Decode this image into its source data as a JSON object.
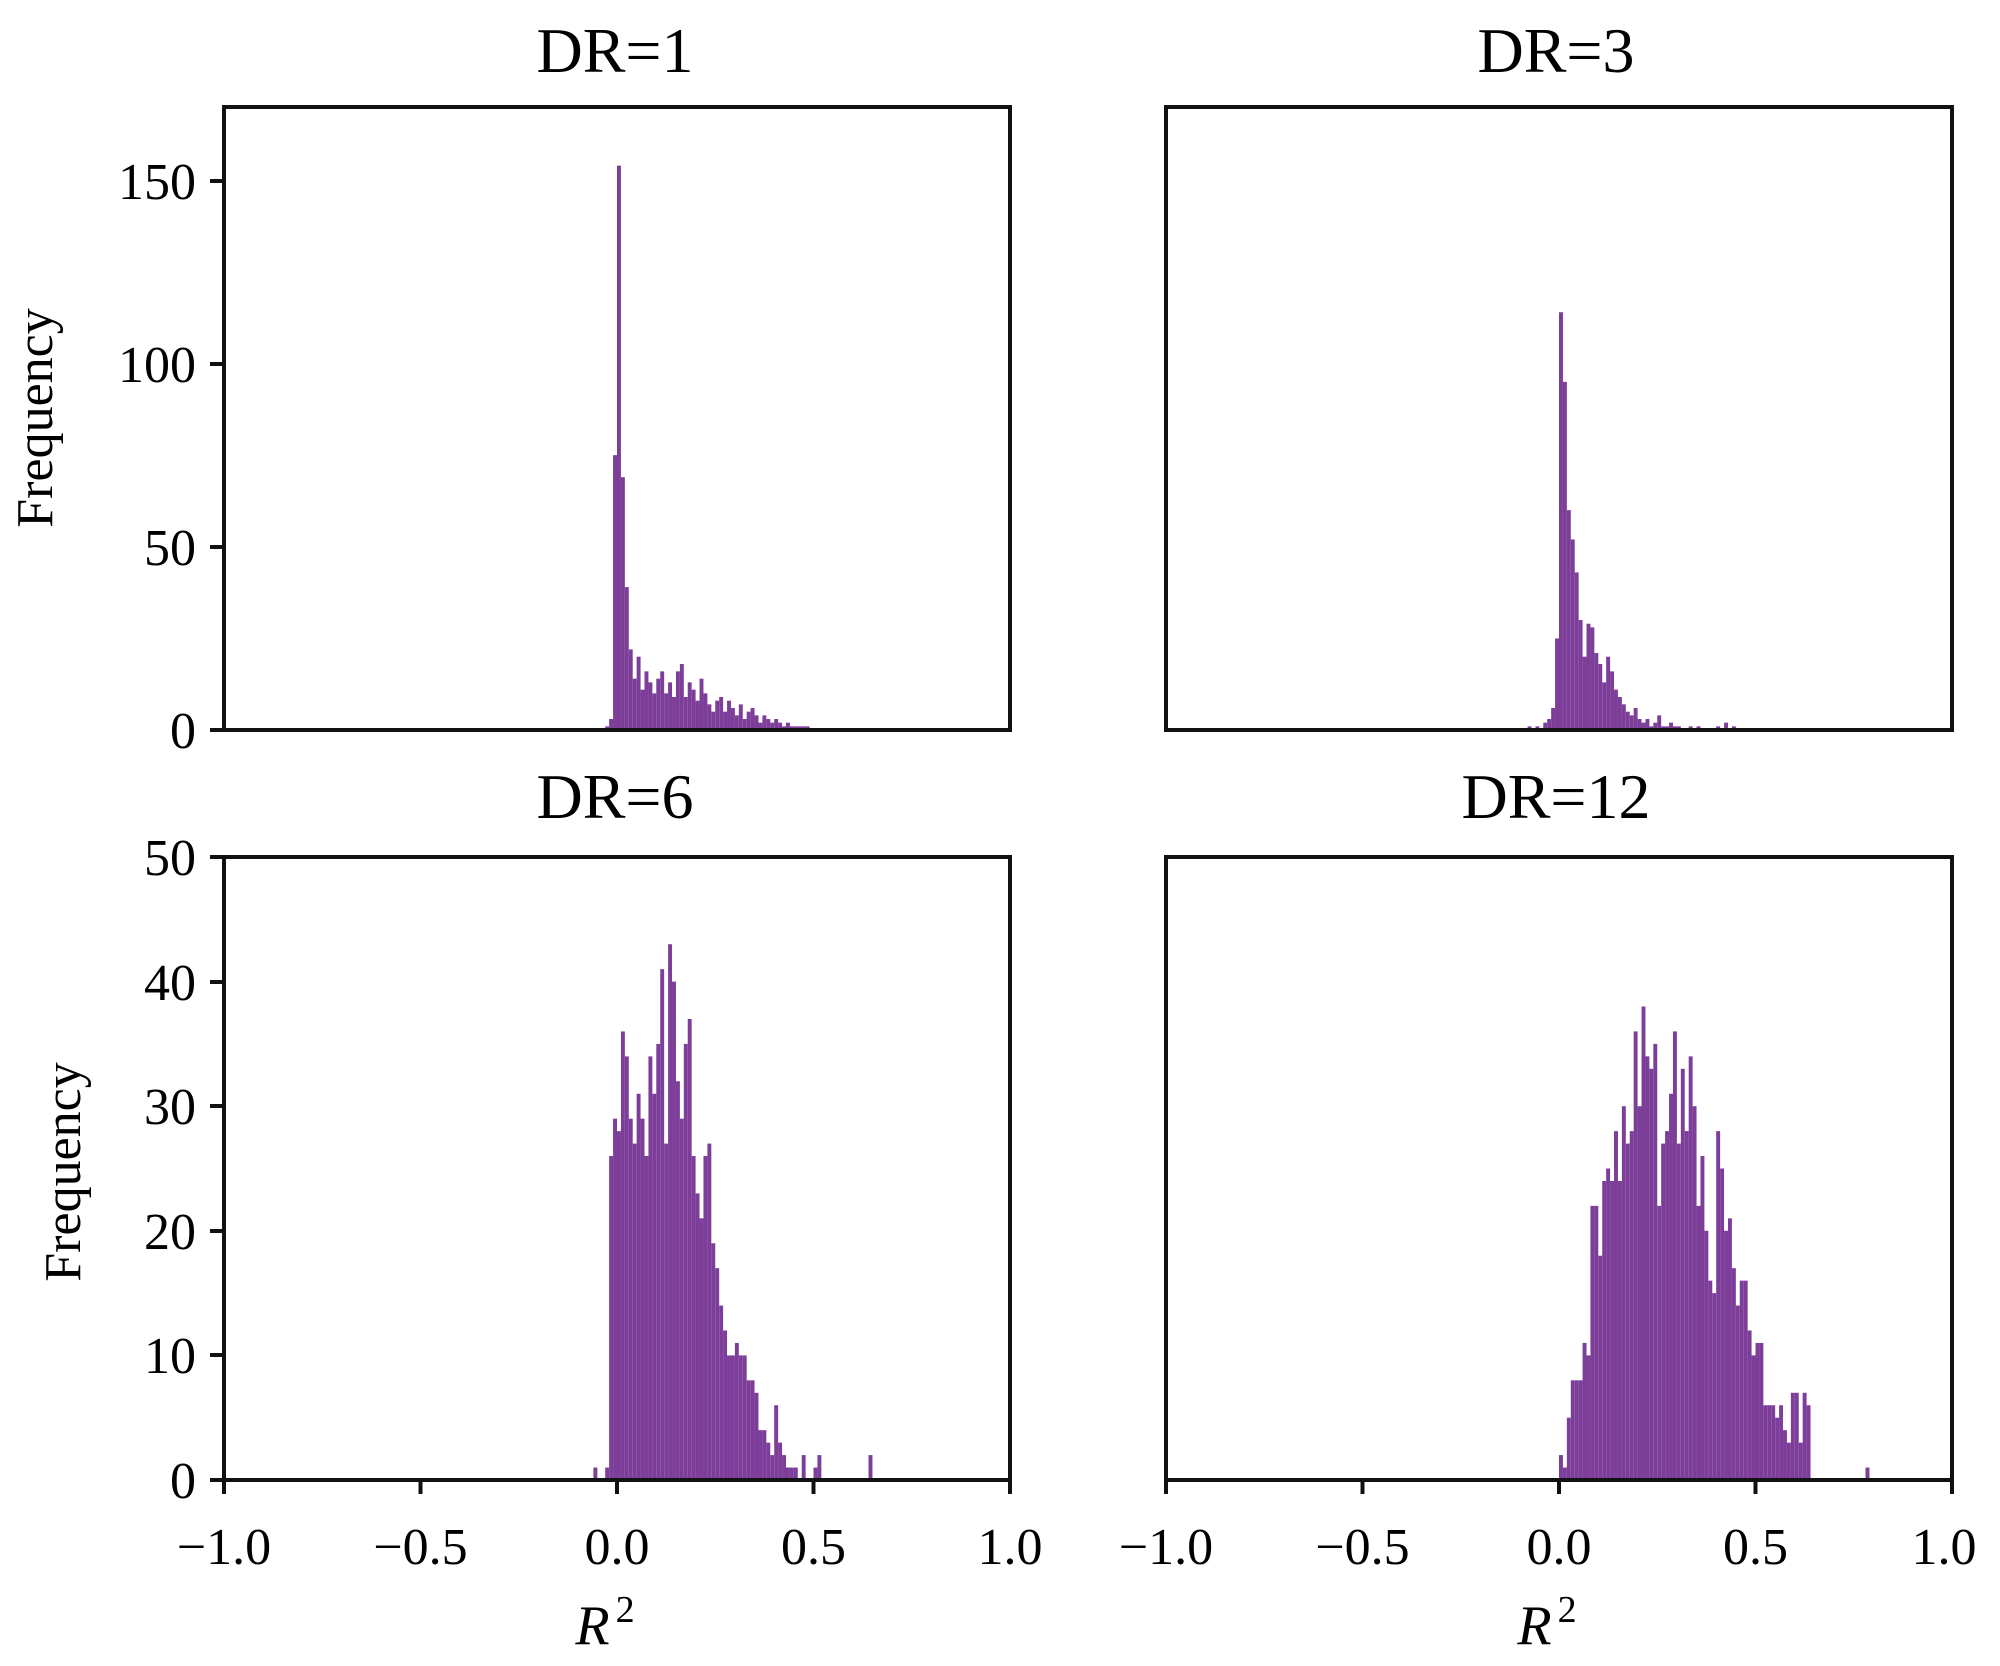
{
  "figure": {
    "bar_color": "#7d3e99",
    "x_tick_labels": [
      "−1.0",
      "−0.5",
      "0.0",
      "0.5",
      "1.0"
    ],
    "xlabel": "R",
    "xlabel_sup": "2",
    "ylabel": "Frequency"
  },
  "chart_data": [
    {
      "type": "bar",
      "title": "DR=1",
      "xlabel": "",
      "ylabel": "Frequency",
      "xlim": [
        -1.0,
        1.0
      ],
      "ylim": [
        0,
        170
      ],
      "yticks": [
        0,
        50,
        100,
        150
      ],
      "x_tick_labels_shown": false,
      "bin_width": 0.01,
      "bins_x": [
        -0.03,
        -0.02,
        -0.01,
        0.0,
        0.01,
        0.02,
        0.03,
        0.04,
        0.05,
        0.06,
        0.07,
        0.08,
        0.09,
        0.1,
        0.11,
        0.12,
        0.13,
        0.14,
        0.15,
        0.16,
        0.17,
        0.18,
        0.19,
        0.2,
        0.21,
        0.22,
        0.23,
        0.24,
        0.25,
        0.26,
        0.27,
        0.28,
        0.29,
        0.3,
        0.31,
        0.32,
        0.33,
        0.34,
        0.35,
        0.36,
        0.37,
        0.38,
        0.39,
        0.4,
        0.41,
        0.42,
        0.43,
        0.44,
        0.45,
        0.46,
        0.47,
        0.48
      ],
      "values": [
        1,
        3,
        75,
        154,
        69,
        39,
        22,
        14,
        20,
        11,
        16,
        13,
        10,
        14,
        16,
        10,
        13,
        9,
        16,
        18,
        9,
        13,
        11,
        8,
        14,
        10,
        7,
        5,
        8,
        9,
        5,
        8,
        6,
        4,
        7,
        3,
        5,
        6,
        4,
        2,
        4,
        3,
        2,
        3,
        2,
        1,
        2,
        1,
        1,
        1,
        1,
        1
      ]
    },
    {
      "type": "bar",
      "title": "DR=3",
      "xlabel": "",
      "ylabel": "",
      "xlim": [
        -1.0,
        1.0
      ],
      "ylim": [
        0,
        170
      ],
      "yticks": [],
      "x_tick_labels_shown": false,
      "bin_width": 0.01,
      "bins_x": [
        -0.08,
        -0.06,
        -0.04,
        -0.03,
        -0.02,
        -0.01,
        0.0,
        0.01,
        0.02,
        0.03,
        0.04,
        0.05,
        0.06,
        0.07,
        0.08,
        0.09,
        0.1,
        0.11,
        0.12,
        0.13,
        0.14,
        0.15,
        0.16,
        0.17,
        0.18,
        0.19,
        0.2,
        0.21,
        0.22,
        0.23,
        0.24,
        0.25,
        0.26,
        0.27,
        0.28,
        0.29,
        0.3,
        0.33,
        0.35,
        0.4,
        0.42,
        0.44
      ],
      "values": [
        1,
        1,
        2,
        3,
        6,
        25,
        114,
        95,
        60,
        52,
        43,
        30,
        20,
        29,
        28,
        21,
        18,
        13,
        20,
        16,
        11,
        9,
        7,
        5,
        4,
        6,
        3,
        2,
        3,
        1,
        2,
        4,
        1,
        1,
        2,
        1,
        1,
        1,
        1,
        1,
        2,
        1
      ]
    },
    {
      "type": "bar",
      "title": "DR=6",
      "xlabel": "R²",
      "ylabel": "Frequency",
      "xlim": [
        -1.0,
        1.0
      ],
      "ylim": [
        0,
        50
      ],
      "yticks": [
        0,
        10,
        20,
        30,
        40,
        50
      ],
      "x_tick_labels_shown": true,
      "bin_width": 0.01,
      "bins_x": [
        -0.06,
        -0.04,
        -0.03,
        -0.02,
        -0.01,
        0.0,
        0.01,
        0.02,
        0.03,
        0.04,
        0.05,
        0.06,
        0.07,
        0.08,
        0.09,
        0.1,
        0.11,
        0.12,
        0.13,
        0.14,
        0.15,
        0.16,
        0.17,
        0.18,
        0.19,
        0.2,
        0.21,
        0.22,
        0.23,
        0.24,
        0.25,
        0.26,
        0.27,
        0.28,
        0.29,
        0.3,
        0.31,
        0.32,
        0.33,
        0.34,
        0.35,
        0.36,
        0.37,
        0.38,
        0.39,
        0.4,
        0.41,
        0.42,
        0.43,
        0.44,
        0.45,
        0.46,
        0.47,
        0.48,
        0.49,
        0.5,
        0.51,
        0.64
      ],
      "values": [
        1,
        0,
        1,
        26,
        29,
        28,
        36,
        34,
        29,
        27,
        31,
        29,
        26,
        34,
        31,
        35,
        41,
        27,
        43,
        40,
        32,
        29,
        35,
        37,
        26,
        23,
        21,
        26,
        27,
        19,
        17,
        14,
        12,
        10,
        10,
        11,
        10,
        10,
        8,
        8,
        7,
        4,
        4,
        3,
        2,
        6,
        3,
        2,
        1,
        1,
        1,
        0,
        2,
        0,
        0,
        1,
        2,
        2
      ]
    },
    {
      "type": "bar",
      "title": "DR=12",
      "xlabel": "R²",
      "ylabel": "",
      "xlim": [
        -1.0,
        1.0
      ],
      "ylim": [
        0,
        50
      ],
      "yticks": [],
      "x_tick_labels_shown": true,
      "bin_width": 0.01,
      "bins_x": [
        0.0,
        0.01,
        0.02,
        0.03,
        0.04,
        0.05,
        0.06,
        0.07,
        0.08,
        0.09,
        0.1,
        0.11,
        0.12,
        0.13,
        0.14,
        0.15,
        0.16,
        0.17,
        0.18,
        0.19,
        0.2,
        0.21,
        0.22,
        0.23,
        0.24,
        0.25,
        0.26,
        0.27,
        0.28,
        0.29,
        0.3,
        0.31,
        0.32,
        0.33,
        0.34,
        0.35,
        0.36,
        0.37,
        0.38,
        0.39,
        0.4,
        0.41,
        0.42,
        0.43,
        0.44,
        0.45,
        0.46,
        0.47,
        0.48,
        0.49,
        0.5,
        0.51,
        0.52,
        0.53,
        0.54,
        0.55,
        0.56,
        0.57,
        0.58,
        0.59,
        0.6,
        0.61,
        0.62,
        0.63,
        0.78
      ],
      "values": [
        2,
        1,
        5,
        8,
        8,
        8,
        11,
        10,
        22,
        22,
        18,
        24,
        25,
        24,
        28,
        24,
        30,
        27,
        28,
        36,
        30,
        38,
        34,
        33,
        35,
        22,
        27,
        28,
        31,
        36,
        27,
        33,
        28,
        34,
        30,
        22,
        26,
        20,
        16,
        15,
        28,
        25,
        20,
        21,
        17,
        14,
        16,
        16,
        12,
        10,
        11,
        11,
        6,
        6,
        6,
        5,
        6,
        4,
        3,
        7,
        7,
        3,
        7,
        6,
        1
      ]
    }
  ]
}
